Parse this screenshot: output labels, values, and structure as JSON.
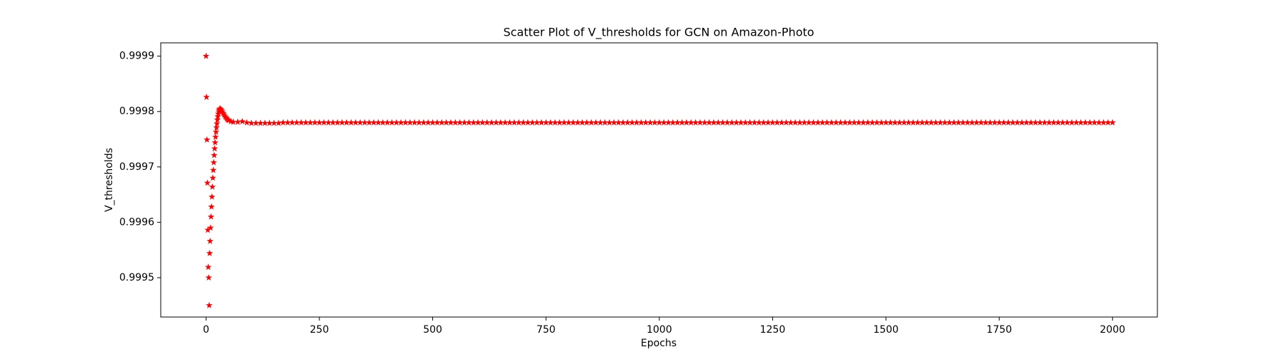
{
  "chart_data": {
    "type": "scatter",
    "title": "Scatter Plot of V_thresholds for GCN on Amazon-Photo",
    "xlabel": "Epochs",
    "ylabel": "V_thresholds",
    "color": "#ff0000",
    "marker": "star",
    "xlim": [
      -99.95,
      2098.95
    ],
    "xticks": [
      0,
      250,
      500,
      750,
      1000,
      1250,
      1500,
      1750,
      2000
    ],
    "ylim": [
      0.999429,
      0.999924
    ],
    "yticks": [
      0.9995,
      0.9996,
      0.9997,
      0.9998,
      0.9999
    ],
    "x": [
      0,
      1,
      2,
      3,
      4,
      5,
      6,
      7,
      8,
      9,
      10,
      11,
      12,
      13,
      14,
      15,
      16,
      17,
      18,
      19,
      20,
      21,
      22,
      23,
      24,
      25,
      26,
      27,
      28,
      29,
      30,
      32,
      34,
      36,
      38,
      40,
      42,
      44,
      46,
      48,
      50,
      55,
      60,
      70,
      80,
      90,
      100,
      110,
      120,
      130,
      140,
      150,
      160,
      170,
      180,
      190,
      200,
      210,
      220,
      230,
      240,
      250,
      260,
      270,
      280,
      290,
      300,
      310,
      320,
      330,
      340,
      350,
      360,
      370,
      380,
      390,
      400,
      410,
      420,
      430,
      440,
      450,
      460,
      470,
      480,
      490,
      500,
      510,
      520,
      530,
      540,
      550,
      560,
      570,
      580,
      590,
      600,
      610,
      620,
      630,
      640,
      650,
      660,
      670,
      680,
      690,
      700,
      710,
      720,
      730,
      740,
      750,
      760,
      770,
      780,
      790,
      800,
      810,
      820,
      830,
      840,
      850,
      860,
      870,
      880,
      890,
      900,
      910,
      920,
      930,
      940,
      950,
      960,
      970,
      980,
      990,
      1000,
      1010,
      1020,
      1030,
      1040,
      1050,
      1060,
      1070,
      1080,
      1090,
      1100,
      1110,
      1120,
      1130,
      1140,
      1150,
      1160,
      1170,
      1180,
      1190,
      1200,
      1210,
      1220,
      1230,
      1240,
      1250,
      1260,
      1270,
      1280,
      1290,
      1300,
      1310,
      1320,
      1330,
      1340,
      1350,
      1360,
      1370,
      1380,
      1390,
      1400,
      1410,
      1420,
      1430,
      1440,
      1450,
      1460,
      1470,
      1480,
      1490,
      1500,
      1510,
      1520,
      1530,
      1540,
      1550,
      1560,
      1570,
      1580,
      1590,
      1600,
      1610,
      1620,
      1630,
      1640,
      1650,
      1660,
      1670,
      1680,
      1690,
      1700,
      1710,
      1720,
      1730,
      1740,
      1750,
      1760,
      1770,
      1780,
      1790,
      1800,
      1810,
      1820,
      1830,
      1840,
      1850,
      1860,
      1870,
      1880,
      1890,
      1900,
      1910,
      1920,
      1930,
      1940,
      1950,
      1960,
      1970,
      1980,
      1990,
      2000
    ],
    "values": [
      0.9999,
      0.999826,
      0.999749,
      0.999671,
      0.999586,
      0.999519,
      0.9995,
      0.99945,
      0.999544,
      0.999566,
      0.99959,
      0.99961,
      0.999628,
      0.999646,
      0.999664,
      0.99968,
      0.999694,
      0.999708,
      0.999721,
      0.999733,
      0.999744,
      0.999754,
      0.999763,
      0.999771,
      0.999778,
      0.999785,
      0.999791,
      0.999796,
      0.9998,
      0.999803,
      0.999805,
      0.999805,
      0.999803,
      0.9998,
      0.999797,
      0.999794,
      0.999791,
      0.999789,
      0.999787,
      0.999785,
      0.999784,
      0.999782,
      0.999781,
      0.999781,
      0.999782,
      0.99978,
      0.999779,
      0.999779,
      0.999779,
      0.999779,
      0.999779,
      0.999779,
      0.999779,
      0.99978,
      0.99978,
      0.99978,
      0.99978,
      0.99978,
      0.99978,
      0.99978,
      0.99978,
      0.99978,
      0.99978,
      0.99978,
      0.99978,
      0.99978,
      0.99978,
      0.99978,
      0.99978,
      0.99978,
      0.99978,
      0.99978,
      0.99978,
      0.99978,
      0.99978,
      0.99978,
      0.99978,
      0.99978,
      0.99978,
      0.99978,
      0.99978,
      0.99978,
      0.99978,
      0.99978,
      0.99978,
      0.99978,
      0.99978,
      0.99978,
      0.99978,
      0.99978,
      0.99978,
      0.99978,
      0.99978,
      0.99978,
      0.99978,
      0.99978,
      0.99978,
      0.99978,
      0.99978,
      0.99978,
      0.99978,
      0.99978,
      0.99978,
      0.99978,
      0.99978,
      0.99978,
      0.99978,
      0.99978,
      0.99978,
      0.99978,
      0.99978,
      0.99978,
      0.99978,
      0.99978,
      0.99978,
      0.99978,
      0.99978,
      0.99978,
      0.99978,
      0.99978,
      0.99978,
      0.99978,
      0.99978,
      0.99978,
      0.99978,
      0.99978,
      0.99978,
      0.99978,
      0.99978,
      0.99978,
      0.99978,
      0.99978,
      0.99978,
      0.99978,
      0.99978,
      0.99978,
      0.99978,
      0.99978,
      0.99978,
      0.99978,
      0.99978,
      0.99978,
      0.99978,
      0.99978,
      0.99978,
      0.99978,
      0.99978,
      0.99978,
      0.99978,
      0.99978,
      0.99978,
      0.99978,
      0.99978,
      0.99978,
      0.99978,
      0.99978,
      0.99978,
      0.99978,
      0.99978,
      0.99978,
      0.99978,
      0.99978,
      0.99978,
      0.99978,
      0.99978,
      0.99978,
      0.99978,
      0.99978,
      0.99978,
      0.99978,
      0.99978,
      0.99978,
      0.99978,
      0.99978,
      0.99978,
      0.99978,
      0.99978,
      0.99978,
      0.99978,
      0.99978,
      0.99978,
      0.99978,
      0.99978,
      0.99978,
      0.99978,
      0.99978,
      0.99978,
      0.99978,
      0.99978,
      0.99978,
      0.99978,
      0.99978,
      0.99978,
      0.99978,
      0.99978,
      0.99978,
      0.99978,
      0.99978,
      0.99978,
      0.99978,
      0.99978,
      0.99978,
      0.99978,
      0.99978,
      0.99978,
      0.99978,
      0.99978,
      0.99978,
      0.99978,
      0.99978,
      0.99978,
      0.99978,
      0.99978,
      0.99978,
      0.99978,
      0.99978,
      0.99978,
      0.99978,
      0.99978,
      0.99978,
      0.99978,
      0.99978,
      0.99978,
      0.99978,
      0.99978,
      0.99978,
      0.99978,
      0.99978,
      0.99978,
      0.99978,
      0.99978,
      0.99978,
      0.99978,
      0.99978,
      0.99978,
      0.99978,
      0.99978
    ]
  }
}
